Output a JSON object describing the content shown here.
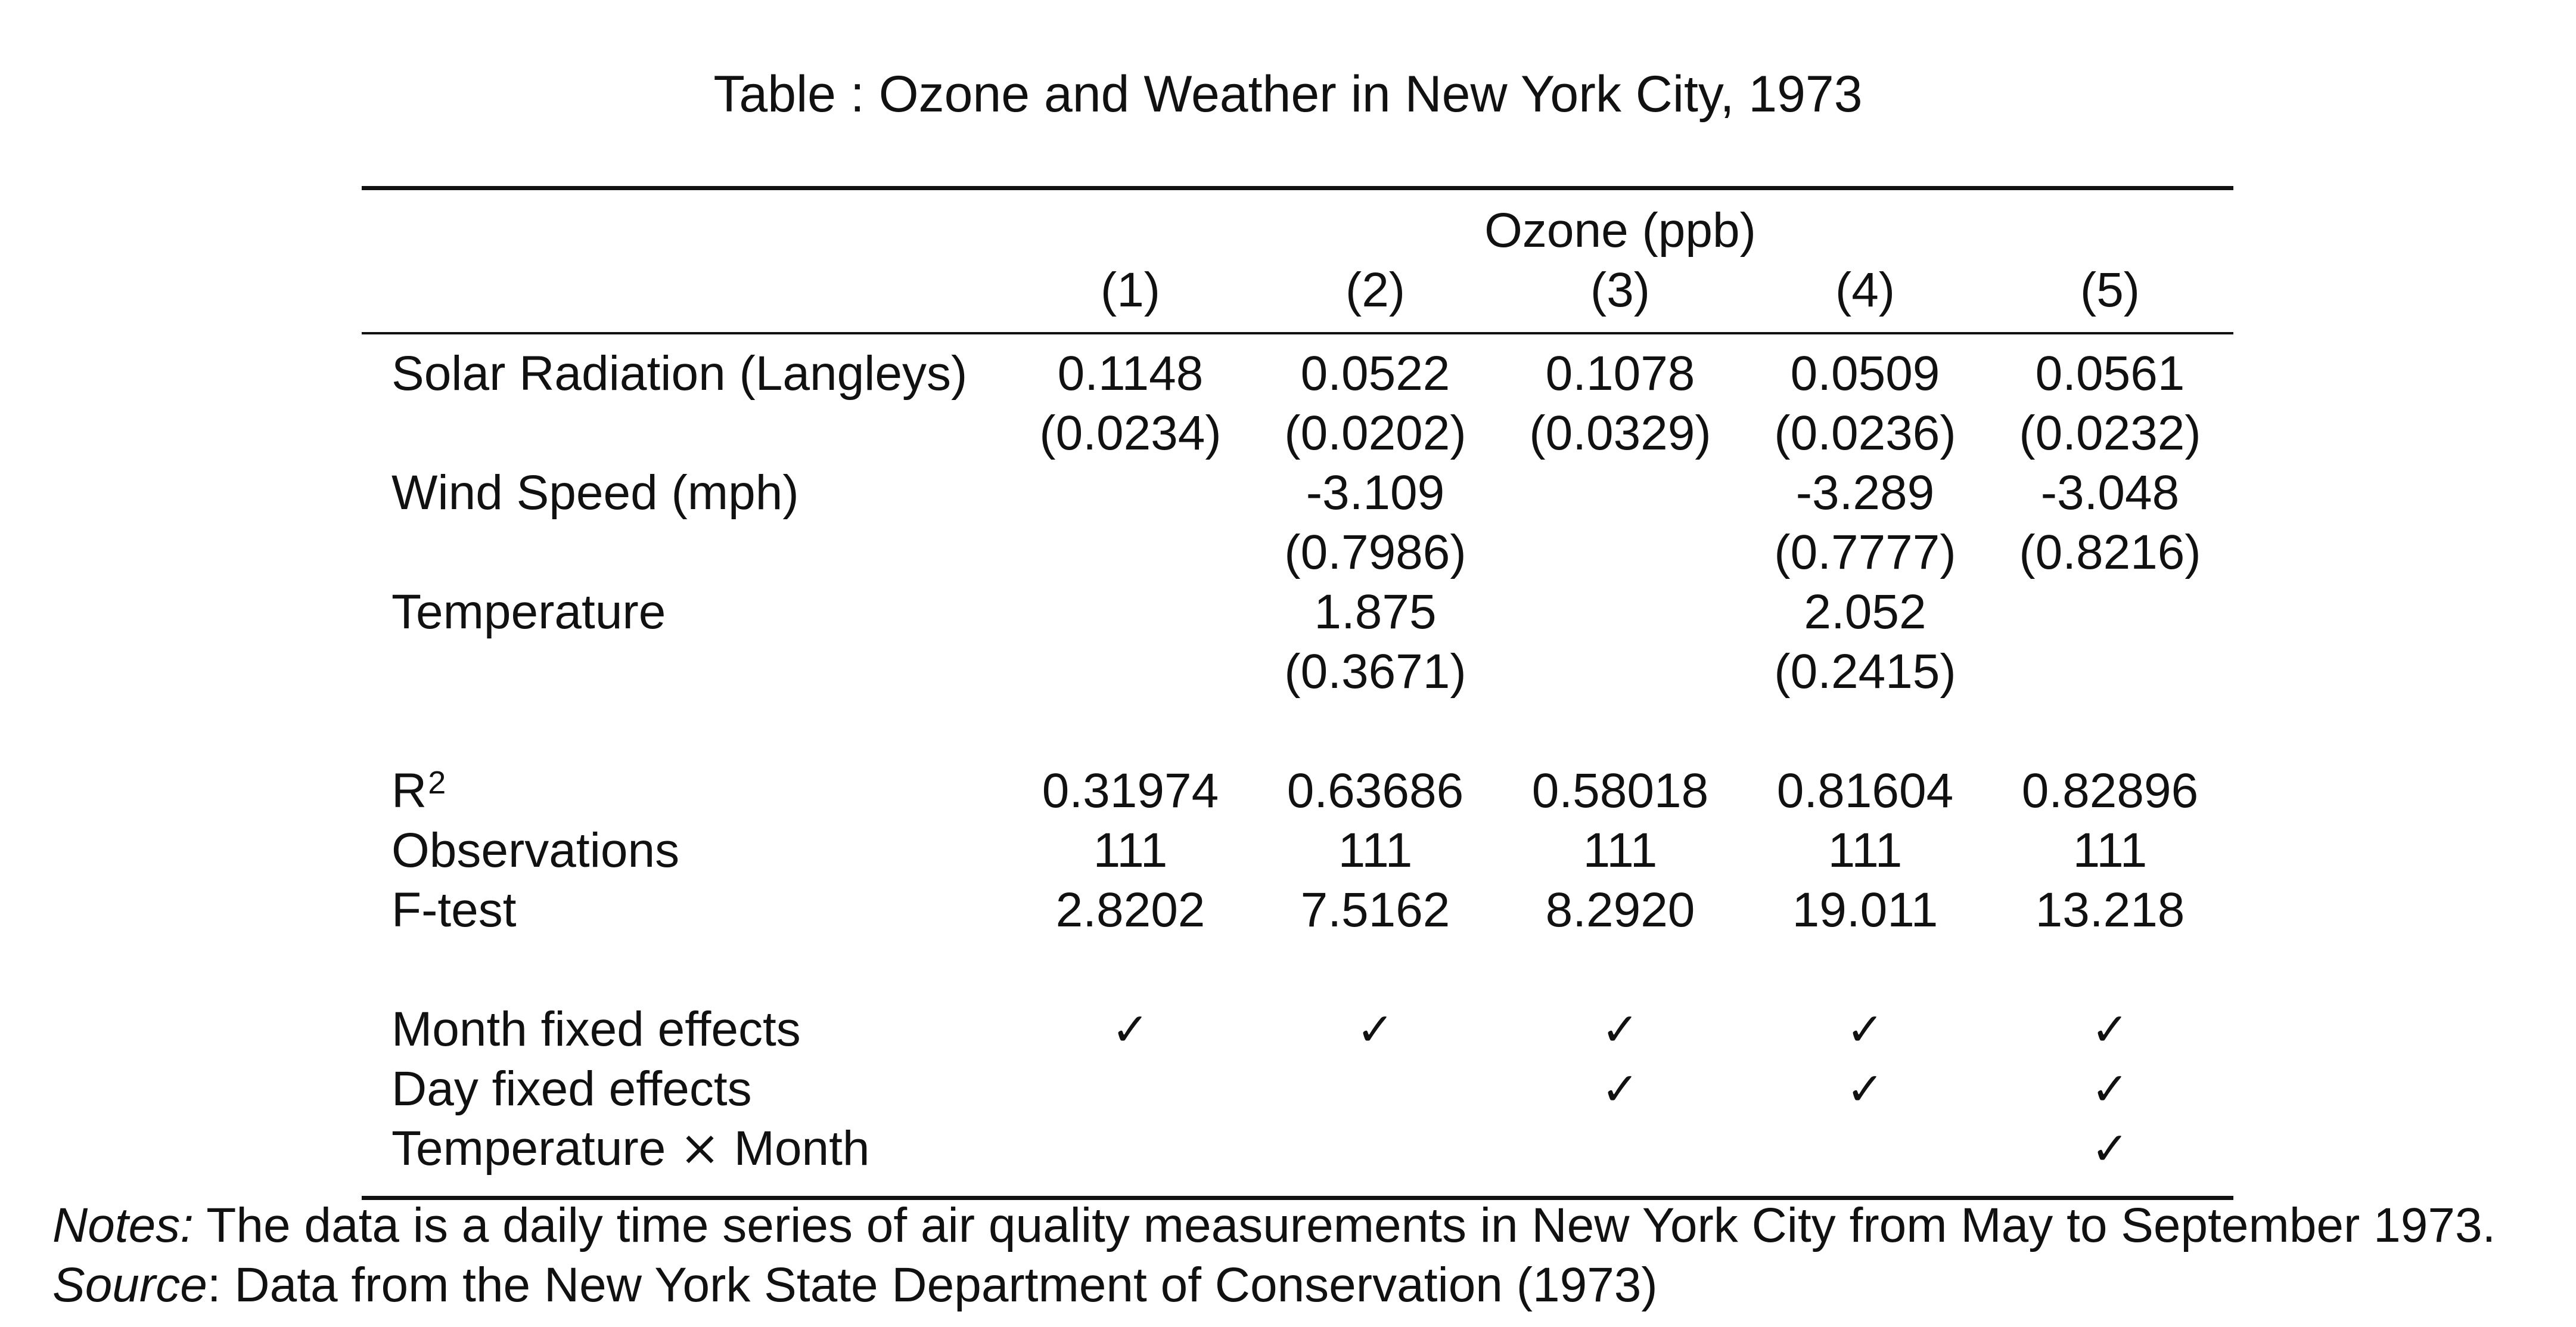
{
  "table": {
    "caption": "Table : Ozone and Weather in New York City, 1973",
    "dependent_variable": "Ozone (ppb)",
    "columns": [
      "(1)",
      "(2)",
      "(3)",
      "(4)",
      "(5)"
    ],
    "coefficients": [
      {
        "label": "Solar Radiation (Langleys)",
        "estimates": [
          "0.1148",
          "0.0522",
          "0.1078",
          "0.0509",
          "0.0561"
        ],
        "std_errors": [
          "(0.0234)",
          "(0.0202)",
          "(0.0329)",
          "(0.0236)",
          "(0.0232)"
        ]
      },
      {
        "label": "Wind Speed (mph)",
        "estimates": [
          "",
          "-3.109",
          "",
          "-3.289",
          "-3.048"
        ],
        "std_errors": [
          "",
          "(0.7986)",
          "",
          "(0.7777)",
          "(0.8216)"
        ]
      },
      {
        "label": "Temperature",
        "estimates": [
          "",
          "1.875",
          "",
          "2.052",
          ""
        ],
        "std_errors": [
          "",
          "(0.3671)",
          "",
          "(0.2415)",
          ""
        ]
      }
    ],
    "statistics": [
      {
        "label": "R",
        "label_superscript": "2",
        "values": [
          "0.31974",
          "0.63686",
          "0.58018",
          "0.81604",
          "0.82896"
        ]
      },
      {
        "label": "Observations",
        "values": [
          "111",
          "111",
          "111",
          "111",
          "111"
        ]
      },
      {
        "label": "F-test",
        "values": [
          "2.8202",
          "7.5162",
          "8.2920",
          "19.011",
          "13.218"
        ]
      }
    ],
    "fixed_effects": [
      {
        "label": "Month fixed effects",
        "checks": [
          "✓",
          "✓",
          "✓",
          "✓",
          "✓"
        ]
      },
      {
        "label": "Day fixed effects",
        "checks": [
          "",
          "",
          "✓",
          "✓",
          "✓"
        ]
      },
      {
        "label_before": "Temperature ",
        "label_symbol": "×",
        "label_after": " Month",
        "checks": [
          "",
          "",
          "",
          "",
          "✓"
        ]
      }
    ]
  },
  "notes": {
    "notes_label": "Notes:",
    "notes_text": " The data is a daily time series of air quality measurements in New York City from May to September 1973.",
    "source_label": "Source",
    "source_text": ": Data from the New York State Department of Conservation (1973)"
  }
}
